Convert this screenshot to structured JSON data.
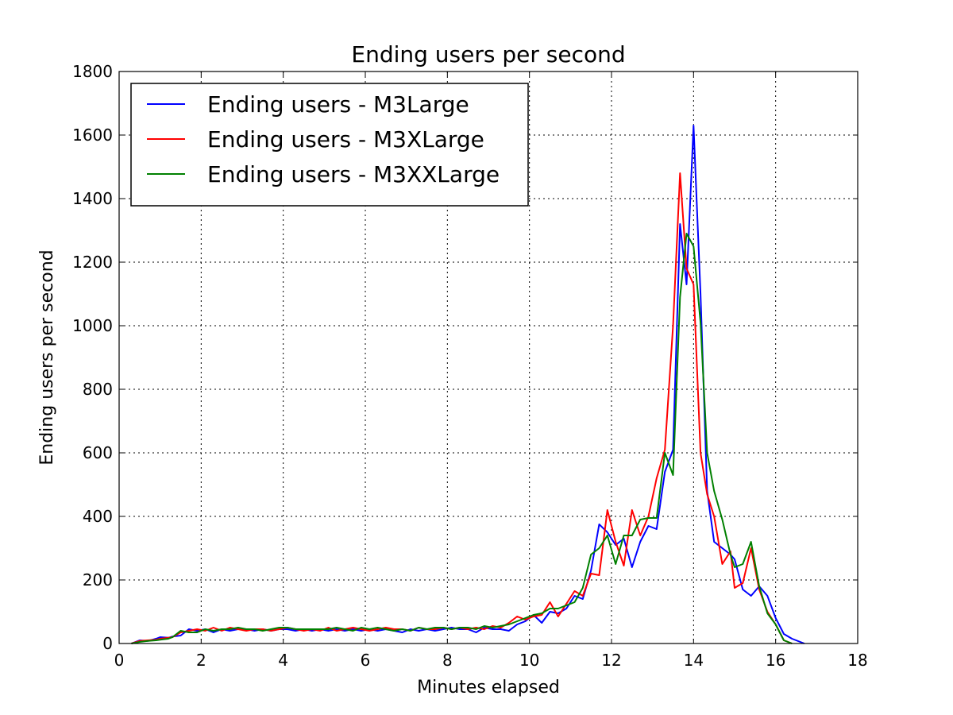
{
  "chart_data": {
    "type": "line",
    "title": "Ending users per second",
    "xlabel": "Minutes elapsed",
    "ylabel": "Ending users per second",
    "xlim": [
      0,
      18
    ],
    "ylim": [
      0,
      1800
    ],
    "xticks": [
      0,
      2,
      4,
      6,
      8,
      10,
      12,
      14,
      16,
      18
    ],
    "yticks": [
      0,
      200,
      400,
      600,
      800,
      1000,
      1200,
      1400,
      1600,
      1800
    ],
    "grid": true,
    "legend_position": "top-left",
    "series": [
      {
        "name": "Ending users - M3Large",
        "color": "#0000ff",
        "x": [
          0.3,
          0.5,
          0.7,
          0.9,
          1.0,
          1.2,
          1.3,
          1.5,
          1.7,
          1.9,
          2.1,
          2.3,
          2.5,
          2.7,
          2.9,
          3.1,
          3.3,
          3.5,
          3.7,
          3.9,
          4.1,
          4.3,
          4.5,
          4.7,
          4.9,
          5.1,
          5.3,
          5.5,
          5.7,
          5.9,
          6.1,
          6.3,
          6.5,
          6.7,
          6.9,
          7.1,
          7.3,
          7.5,
          7.7,
          7.9,
          8.1,
          8.3,
          8.5,
          8.7,
          8.9,
          9.1,
          9.3,
          9.5,
          9.7,
          9.9,
          10.1,
          10.3,
          10.5,
          10.7,
          10.9,
          11.1,
          11.3,
          11.5,
          11.7,
          11.9,
          12.1,
          12.3,
          12.5,
          12.7,
          12.9,
          13.1,
          13.3,
          13.5,
          13.67,
          13.83,
          14.0,
          14.17,
          14.33,
          14.5,
          14.7,
          14.9,
          15.0,
          15.2,
          15.4,
          15.6,
          15.8,
          16.0,
          16.2,
          16.4,
          16.7
        ],
        "values": [
          0,
          10,
          8,
          15,
          20,
          18,
          22,
          25,
          45,
          40,
          45,
          35,
          45,
          40,
          45,
          45,
          40,
          45,
          40,
          45,
          45,
          40,
          45,
          40,
          45,
          40,
          45,
          40,
          45,
          40,
          45,
          40,
          45,
          40,
          35,
          45,
          40,
          45,
          40,
          45,
          50,
          45,
          45,
          35,
          50,
          45,
          45,
          40,
          60,
          70,
          90,
          65,
          100,
          95,
          110,
          150,
          140,
          230,
          375,
          350,
          310,
          330,
          240,
          320,
          370,
          360,
          540,
          610,
          1320,
          1130,
          1630,
          1100,
          480,
          320,
          300,
          280,
          265,
          170,
          150,
          180,
          150,
          80,
          30,
          15,
          0
        ]
      },
      {
        "name": "Ending users - M3XLarge",
        "color": "#ff0000",
        "x": [
          0.3,
          0.5,
          0.7,
          0.9,
          1.0,
          1.2,
          1.3,
          1.5,
          1.7,
          1.9,
          2.1,
          2.3,
          2.5,
          2.7,
          2.9,
          3.1,
          3.3,
          3.5,
          3.7,
          3.9,
          4.1,
          4.3,
          4.5,
          4.7,
          4.9,
          5.1,
          5.3,
          5.5,
          5.7,
          5.9,
          6.1,
          6.3,
          6.5,
          6.7,
          6.9,
          7.1,
          7.3,
          7.5,
          7.7,
          7.9,
          8.1,
          8.3,
          8.5,
          8.7,
          8.9,
          9.1,
          9.3,
          9.5,
          9.7,
          9.9,
          10.1,
          10.3,
          10.5,
          10.7,
          10.9,
          11.1,
          11.3,
          11.5,
          11.7,
          11.9,
          12.1,
          12.3,
          12.5,
          12.7,
          12.9,
          13.1,
          13.3,
          13.5,
          13.67,
          13.83,
          14.0,
          14.17,
          14.33,
          14.5,
          14.7,
          14.9,
          15.0,
          15.2,
          15.4,
          15.6,
          15.8,
          16.0,
          16.2,
          16.4
        ],
        "values": [
          0,
          8,
          10,
          12,
          15,
          18,
          20,
          35,
          40,
          45,
          40,
          50,
          40,
          50,
          45,
          40,
          45,
          45,
          40,
          45,
          50,
          45,
          40,
          45,
          40,
          50,
          40,
          45,
          50,
          45,
          40,
          45,
          50,
          45,
          45,
          40,
          50,
          45,
          45,
          50,
          45,
          50,
          45,
          50,
          45,
          55,
          50,
          65,
          85,
          75,
          85,
          90,
          130,
          85,
          125,
          165,
          150,
          220,
          215,
          420,
          320,
          245,
          420,
          340,
          400,
          520,
          610,
          1000,
          1480,
          1180,
          1130,
          600,
          470,
          400,
          250,
          290,
          175,
          190,
          300,
          170,
          100,
          60,
          10,
          0
        ]
      },
      {
        "name": "Ending users - M3XXLarge",
        "color": "#008000",
        "x": [
          0.3,
          0.5,
          0.7,
          0.9,
          1.0,
          1.2,
          1.3,
          1.5,
          1.7,
          1.9,
          2.1,
          2.3,
          2.5,
          2.7,
          2.9,
          3.1,
          3.3,
          3.5,
          3.7,
          3.9,
          4.1,
          4.3,
          4.5,
          4.7,
          4.9,
          5.1,
          5.3,
          5.5,
          5.7,
          5.9,
          6.1,
          6.3,
          6.5,
          6.7,
          6.9,
          7.1,
          7.3,
          7.5,
          7.7,
          7.9,
          8.1,
          8.3,
          8.5,
          8.7,
          8.9,
          9.1,
          9.3,
          9.5,
          9.7,
          9.9,
          10.1,
          10.3,
          10.5,
          10.7,
          10.9,
          11.1,
          11.3,
          11.5,
          11.7,
          11.9,
          12.1,
          12.3,
          12.5,
          12.7,
          12.9,
          13.1,
          13.3,
          13.5,
          13.67,
          13.83,
          14.0,
          14.17,
          14.33,
          14.5,
          14.7,
          14.9,
          15.0,
          15.2,
          15.4,
          15.6,
          15.8,
          16.0,
          16.2,
          16.4
        ],
        "values": [
          0,
          5,
          8,
          10,
          12,
          15,
          20,
          40,
          35,
          35,
          45,
          40,
          45,
          45,
          50,
          45,
          45,
          40,
          45,
          50,
          50,
          45,
          45,
          45,
          45,
          45,
          50,
          45,
          40,
          50,
          45,
          50,
          45,
          40,
          45,
          40,
          50,
          45,
          50,
          50,
          45,
          50,
          50,
          45,
          55,
          50,
          55,
          60,
          70,
          80,
          90,
          95,
          110,
          110,
          120,
          130,
          175,
          280,
          300,
          340,
          250,
          340,
          340,
          390,
          395,
          395,
          600,
          530,
          1090,
          1290,
          1250,
          1010,
          600,
          480,
          390,
          280,
          240,
          250,
          320,
          180,
          95,
          60,
          10,
          0
        ]
      }
    ]
  }
}
